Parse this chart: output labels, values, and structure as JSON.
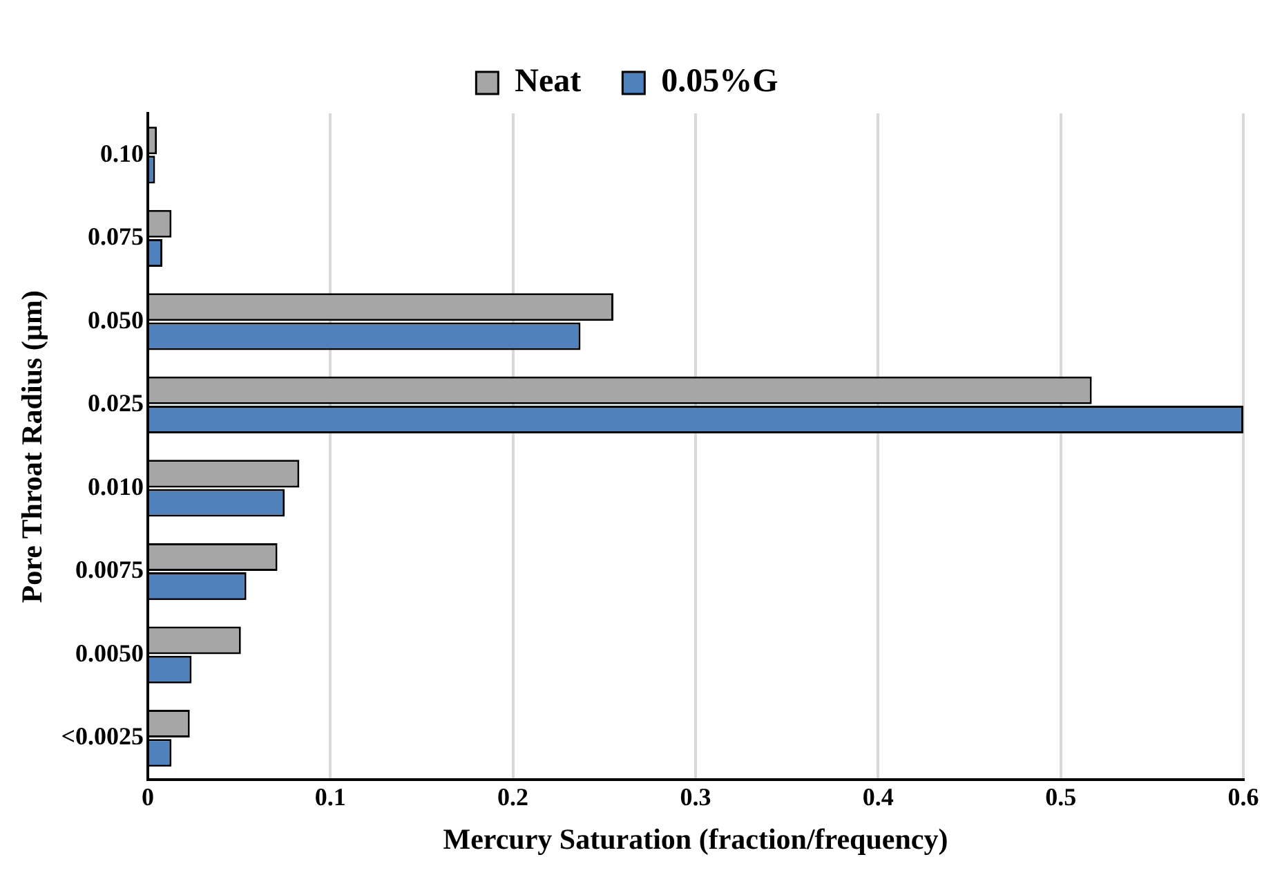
{
  "chart_data": {
    "type": "bar",
    "orientation": "horizontal",
    "xlabel": "Mercury Saturation (fraction/frequency)",
    "ylabel": "Pore Throat Radius (µm)",
    "categories": [
      "0.10",
      "0.075",
      "0.050",
      "0.025",
      "0.010",
      "0.0075",
      "0.0050",
      "<0.0025"
    ],
    "series": [
      {
        "name": "Neat",
        "color": "#a6a6a6",
        "values": [
          0.005,
          0.013,
          0.255,
          0.517,
          0.083,
          0.071,
          0.051,
          0.023
        ]
      },
      {
        "name": "0.05%G",
        "color": "#4f81bd",
        "values": [
          0.004,
          0.008,
          0.237,
          0.6,
          0.075,
          0.054,
          0.024,
          0.013
        ]
      }
    ],
    "xlim": [
      0,
      0.6
    ],
    "xticks": [
      0,
      0.1,
      0.2,
      0.3,
      0.4,
      0.5,
      0.6
    ],
    "grid": "x",
    "legend": "top"
  }
}
